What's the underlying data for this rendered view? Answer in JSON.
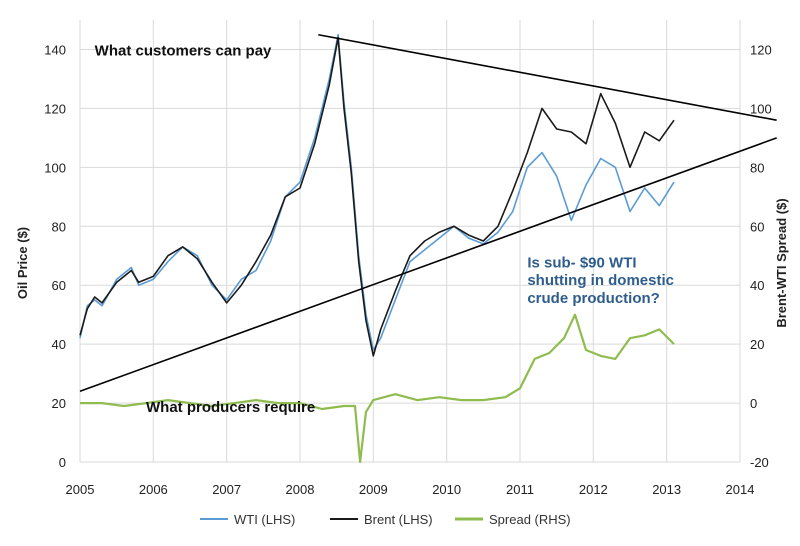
{
  "chart_data": {
    "type": "line",
    "title": "",
    "ylabel": "Oil Price ($)",
    "ylabel_right": "Brent-WTI Spread ($)",
    "xlim": [
      2005,
      2014
    ],
    "ylim": [
      0,
      150
    ],
    "ylim_right": [
      -20,
      130
    ],
    "x_ticks": [
      "2005",
      "2006",
      "2007",
      "2008",
      "2009",
      "2010",
      "2011",
      "2012",
      "2013",
      "2014"
    ],
    "y_ticks_left": [
      "0",
      "20",
      "40",
      "60",
      "80",
      "100",
      "120",
      "140"
    ],
    "y_ticks_right": [
      "-20",
      "0",
      "20",
      "40",
      "60",
      "80",
      "100",
      "120"
    ],
    "grid": true,
    "legend_position": "bottom",
    "series": [
      {
        "name": "WTI (LHS)",
        "axis": "left",
        "color": "#5b9bd5",
        "x": [
          2005.0,
          2005.1,
          2005.2,
          2005.3,
          2005.5,
          2005.7,
          2005.8,
          2006.0,
          2006.2,
          2006.4,
          2006.6,
          2006.8,
          2007.0,
          2007.2,
          2007.4,
          2007.6,
          2007.8,
          2008.0,
          2008.2,
          2008.4,
          2008.52,
          2008.6,
          2008.7,
          2008.8,
          2008.9,
          2009.0,
          2009.1,
          2009.3,
          2009.5,
          2009.7,
          2009.9,
          2010.1,
          2010.3,
          2010.5,
          2010.7,
          2010.9,
          2011.1,
          2011.3,
          2011.5,
          2011.7,
          2011.9,
          2012.1,
          2012.3,
          2012.5,
          2012.7,
          2012.9,
          2013.1
        ],
        "y": [
          42,
          53,
          55,
          53,
          62,
          66,
          60,
          62,
          68,
          73,
          70,
          60,
          55,
          62,
          65,
          75,
          90,
          95,
          110,
          130,
          145,
          122,
          100,
          70,
          50,
          38,
          42,
          55,
          68,
          72,
          76,
          80,
          76,
          74,
          78,
          85,
          100,
          105,
          97,
          82,
          94,
          103,
          100,
          85,
          93,
          87,
          95
        ]
      },
      {
        "name": "Brent (LHS)",
        "axis": "left",
        "color": "#1a1a1a",
        "x": [
          2005.0,
          2005.1,
          2005.2,
          2005.3,
          2005.5,
          2005.7,
          2005.8,
          2006.0,
          2006.2,
          2006.4,
          2006.6,
          2006.8,
          2007.0,
          2007.2,
          2007.4,
          2007.6,
          2007.8,
          2008.0,
          2008.2,
          2008.4,
          2008.52,
          2008.6,
          2008.7,
          2008.8,
          2008.9,
          2009.0,
          2009.1,
          2009.3,
          2009.5,
          2009.7,
          2009.9,
          2010.1,
          2010.3,
          2010.5,
          2010.7,
          2010.9,
          2011.1,
          2011.3,
          2011.5,
          2011.7,
          2011.9,
          2012.1,
          2012.3,
          2012.5,
          2012.7,
          2012.9,
          2013.1
        ],
        "y": [
          43,
          52,
          56,
          54,
          61,
          65,
          61,
          63,
          70,
          73,
          69,
          61,
          54,
          60,
          68,
          77,
          90,
          93,
          108,
          128,
          144,
          120,
          98,
          68,
          48,
          36,
          45,
          58,
          70,
          75,
          78,
          80,
          77,
          75,
          80,
          92,
          105,
          120,
          113,
          112,
          108,
          125,
          115,
          100,
          112,
          109,
          116
        ]
      },
      {
        "name": "Spread (RHS)",
        "axis": "right",
        "color": "#8fbc4f",
        "x": [
          2005.0,
          2005.3,
          2005.6,
          2005.9,
          2006.2,
          2006.5,
          2006.8,
          2007.1,
          2007.4,
          2007.7,
          2008.0,
          2008.3,
          2008.6,
          2008.75,
          2008.82,
          2008.9,
          2009.0,
          2009.3,
          2009.6,
          2009.9,
          2010.2,
          2010.5,
          2010.8,
          2011.0,
          2011.2,
          2011.4,
          2011.6,
          2011.75,
          2011.9,
          2012.1,
          2012.3,
          2012.5,
          2012.7,
          2012.9,
          2013.1
        ],
        "y": [
          0,
          0,
          -1,
          0,
          1,
          0,
          -1,
          0,
          1,
          0,
          0,
          -2,
          -1,
          -1,
          -20,
          -3,
          1,
          3,
          1,
          2,
          1,
          1,
          2,
          5,
          15,
          17,
          22,
          30,
          18,
          16,
          15,
          22,
          23,
          25,
          20
        ]
      }
    ],
    "trend_lines": [
      {
        "x": [
          2008.25,
          2014.5
        ],
        "y": [
          145,
          116
        ]
      },
      {
        "x": [
          2005.0,
          2014.5
        ],
        "y": [
          24,
          110
        ]
      }
    ],
    "annotations": [
      {
        "text": "What customers can pay",
        "x": 2005.2,
        "y": 138,
        "color": "#111111"
      },
      {
        "text": "What producers require",
        "x": 2005.9,
        "y": 17,
        "color": "#111111"
      },
      {
        "text": "Is sub- $90 WTI",
        "x": 2011.1,
        "y": 66,
        "color": "#2e5d8c"
      },
      {
        "text": "shutting in domestic",
        "x": 2011.1,
        "y": 60,
        "color": "#2e5d8c"
      },
      {
        "text": "crude production?",
        "x": 2011.1,
        "y": 54,
        "color": "#2e5d8c"
      }
    ]
  }
}
